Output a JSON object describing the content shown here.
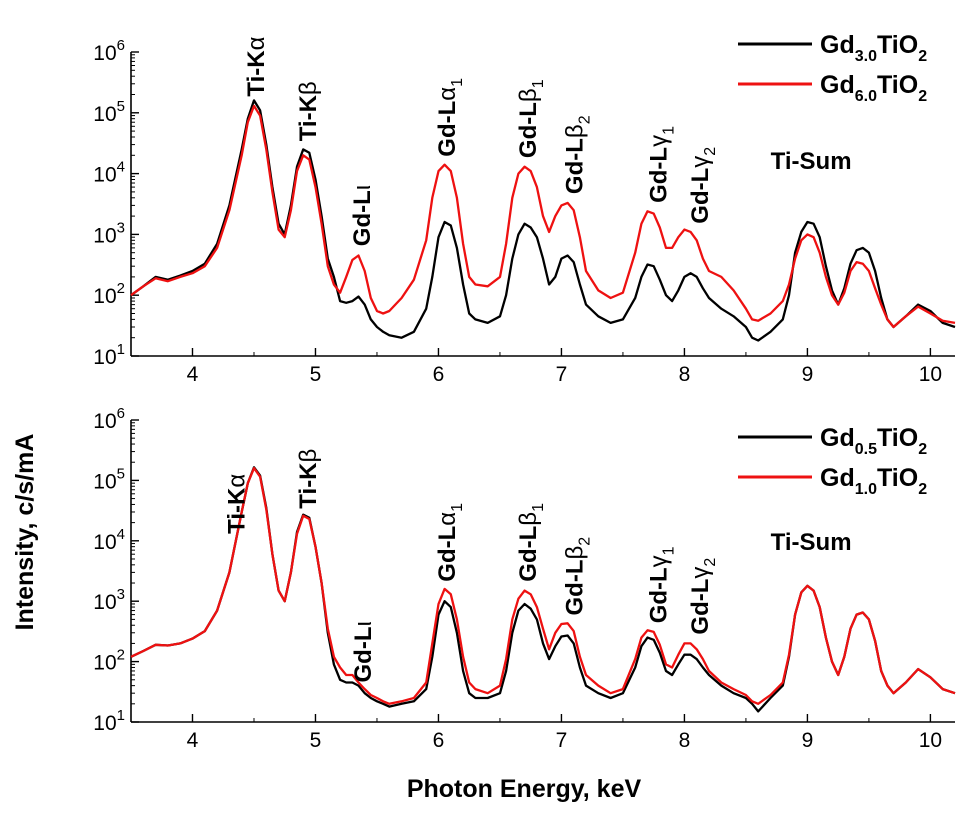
{
  "figure": {
    "xlabel": "Photon Energy, keV",
    "ylabel": "Intensity, c/s/mA"
  },
  "colors": {
    "series_a": "#000000",
    "series_b": "#ee1111"
  },
  "chart_data": [
    {
      "type": "line",
      "xlim": [
        3.5,
        10.2
      ],
      "ylim": [
        10,
        1000000
      ],
      "yscale": "log",
      "x_ticks": [
        4,
        5,
        6,
        7,
        8,
        9,
        10
      ],
      "y_tick_labels": [
        {
          "base": "10",
          "exp": "1"
        },
        {
          "base": "10",
          "exp": "2"
        },
        {
          "base": "10",
          "exp": "3"
        },
        {
          "base": "10",
          "exp": "4"
        },
        {
          "base": "10",
          "exp": "5"
        },
        {
          "base": "10",
          "exp": "6"
        }
      ],
      "legend_position": "top-right",
      "series": [
        {
          "name": "Gd3.0TiO2",
          "legend": {
            "pre": "Gd",
            "sub": "3.0",
            "mid": "TiO",
            "sub2": "2"
          },
          "color": "#000000",
          "x": [
            3.5,
            3.6,
            3.7,
            3.8,
            3.9,
            4.0,
            4.1,
            4.2,
            4.3,
            4.4,
            4.45,
            4.5,
            4.55,
            4.6,
            4.65,
            4.7,
            4.75,
            4.8,
            4.85,
            4.9,
            4.95,
            5.0,
            5.05,
            5.1,
            5.15,
            5.2,
            5.25,
            5.3,
            5.35,
            5.4,
            5.45,
            5.5,
            5.55,
            5.6,
            5.7,
            5.8,
            5.9,
            5.95,
            6.0,
            6.05,
            6.1,
            6.15,
            6.2,
            6.25,
            6.3,
            6.4,
            6.5,
            6.55,
            6.6,
            6.65,
            6.7,
            6.75,
            6.8,
            6.85,
            6.9,
            6.95,
            7.0,
            7.05,
            7.1,
            7.15,
            7.2,
            7.3,
            7.4,
            7.5,
            7.6,
            7.65,
            7.7,
            7.75,
            7.8,
            7.85,
            7.9,
            7.95,
            8.0,
            8.05,
            8.1,
            8.15,
            8.2,
            8.3,
            8.4,
            8.5,
            8.55,
            8.6,
            8.7,
            8.8,
            8.85,
            8.9,
            8.95,
            9.0,
            9.05,
            9.1,
            9.15,
            9.2,
            9.25,
            9.3,
            9.35,
            9.4,
            9.45,
            9.5,
            9.55,
            9.6,
            9.65,
            9.7,
            9.8,
            9.9,
            10.0,
            10.1,
            10.2
          ],
          "y": [
            100,
            140,
            200,
            180,
            210,
            250,
            330,
            700,
            3000,
            25000,
            80000,
            160000,
            110000,
            30000,
            6000,
            1500,
            1000,
            3000,
            13000,
            25000,
            22000,
            8000,
            2000,
            400,
            200,
            80,
            75,
            80,
            95,
            70,
            40,
            30,
            25,
            22,
            20,
            25,
            60,
            200,
            900,
            1600,
            1400,
            600,
            150,
            50,
            40,
            35,
            45,
            100,
            400,
            1000,
            1500,
            1300,
            900,
            400,
            150,
            200,
            400,
            450,
            350,
            150,
            70,
            45,
            35,
            40,
            90,
            200,
            320,
            300,
            180,
            100,
            80,
            120,
            200,
            230,
            200,
            130,
            90,
            60,
            45,
            30,
            20,
            18,
            25,
            40,
            100,
            500,
            1100,
            1600,
            1500,
            900,
            300,
            120,
            70,
            130,
            330,
            550,
            600,
            500,
            250,
            90,
            40,
            30,
            45,
            70,
            55,
            35,
            30
          ]
        },
        {
          "name": "Gd6.0TiO2",
          "legend": {
            "pre": "Gd",
            "sub": "6.0",
            "mid": "TiO",
            "sub2": "2"
          },
          "color": "#ee1111",
          "x": [
            3.5,
            3.6,
            3.7,
            3.8,
            3.9,
            4.0,
            4.1,
            4.2,
            4.3,
            4.4,
            4.45,
            4.5,
            4.55,
            4.6,
            4.65,
            4.7,
            4.75,
            4.8,
            4.85,
            4.9,
            4.95,
            5.0,
            5.05,
            5.1,
            5.15,
            5.2,
            5.25,
            5.3,
            5.35,
            5.4,
            5.45,
            5.5,
            5.55,
            5.6,
            5.7,
            5.8,
            5.9,
            5.95,
            6.0,
            6.05,
            6.1,
            6.15,
            6.2,
            6.25,
            6.3,
            6.4,
            6.5,
            6.55,
            6.6,
            6.65,
            6.7,
            6.75,
            6.8,
            6.85,
            6.9,
            6.95,
            7.0,
            7.05,
            7.1,
            7.15,
            7.2,
            7.3,
            7.4,
            7.5,
            7.6,
            7.65,
            7.7,
            7.75,
            7.8,
            7.85,
            7.9,
            7.95,
            8.0,
            8.05,
            8.1,
            8.15,
            8.2,
            8.3,
            8.4,
            8.5,
            8.55,
            8.6,
            8.7,
            8.8,
            8.85,
            8.9,
            8.95,
            9.0,
            9.05,
            9.1,
            9.15,
            9.2,
            9.25,
            9.3,
            9.35,
            9.4,
            9.45,
            9.5,
            9.55,
            9.6,
            9.65,
            9.7,
            9.8,
            9.9,
            10.0,
            10.1,
            10.2
          ],
          "y": [
            100,
            140,
            190,
            170,
            200,
            230,
            300,
            600,
            2500,
            20000,
            70000,
            130000,
            90000,
            25000,
            5000,
            1200,
            900,
            2500,
            11000,
            20000,
            17000,
            6000,
            1500,
            300,
            150,
            110,
            200,
            380,
            450,
            250,
            90,
            55,
            50,
            55,
            90,
            180,
            800,
            4000,
            11000,
            14000,
            11000,
            4000,
            700,
            200,
            150,
            140,
            200,
            700,
            4000,
            10000,
            13000,
            11000,
            6000,
            2000,
            1100,
            2000,
            3000,
            3300,
            2500,
            900,
            250,
            120,
            90,
            110,
            500,
            1500,
            2400,
            2200,
            1300,
            600,
            600,
            900,
            1200,
            1100,
            800,
            400,
            250,
            200,
            120,
            60,
            40,
            38,
            50,
            80,
            150,
            400,
            800,
            1000,
            900,
            500,
            200,
            100,
            70,
            110,
            250,
            350,
            330,
            250,
            130,
            70,
            40,
            30,
            45,
            65,
            50,
            38,
            35
          ]
        }
      ],
      "annotations": [
        {
          "x": 4.51,
          "y": 185000,
          "base": "Ti-K",
          "greek": "α"
        },
        {
          "x": 4.93,
          "y": 34000,
          "base": "Ti-K",
          "greek": "β"
        },
        {
          "x": 5.37,
          "y": 640,
          "base": "Gd-L",
          "greek": "ι"
        },
        {
          "x": 6.06,
          "y": 19000,
          "base": "Gd-L",
          "greek": "α",
          "sub": "1"
        },
        {
          "x": 6.72,
          "y": 18000,
          "base": "Gd-L",
          "greek": "β",
          "sub": "1"
        },
        {
          "x": 7.1,
          "y": 4600,
          "base": "Gd-L",
          "greek": "β",
          "sub": "2"
        },
        {
          "x": 7.78,
          "y": 3300,
          "base": "Gd-L",
          "greek": "γ",
          "sub": "1"
        },
        {
          "x": 8.12,
          "y": 1500,
          "base": "Gd-L",
          "greek": "γ",
          "sub": "2"
        },
        {
          "x": 9.03,
          "y": 12000,
          "text": "Ti-Sum"
        }
      ]
    },
    {
      "type": "line",
      "xlim": [
        3.5,
        10.2
      ],
      "ylim": [
        10,
        1000000
      ],
      "yscale": "log",
      "x_ticks": [
        4,
        5,
        6,
        7,
        8,
        9,
        10
      ],
      "y_tick_labels": [
        {
          "base": "10",
          "exp": "1"
        },
        {
          "base": "10",
          "exp": "2"
        },
        {
          "base": "10",
          "exp": "3"
        },
        {
          "base": "10",
          "exp": "4"
        },
        {
          "base": "10",
          "exp": "5"
        },
        {
          "base": "10",
          "exp": "6"
        }
      ],
      "legend_position": "top-right",
      "series": [
        {
          "name": "Gd0.5TiO2",
          "legend": {
            "pre": "Gd",
            "sub": "0.5",
            "mid": "TiO",
            "sub2": "2"
          },
          "color": "#000000",
          "x": [
            3.5,
            3.6,
            3.7,
            3.8,
            3.9,
            4.0,
            4.1,
            4.2,
            4.3,
            4.4,
            4.45,
            4.5,
            4.55,
            4.6,
            4.65,
            4.7,
            4.75,
            4.8,
            4.85,
            4.9,
            4.95,
            5.0,
            5.05,
            5.1,
            5.15,
            5.2,
            5.25,
            5.3,
            5.35,
            5.4,
            5.45,
            5.5,
            5.55,
            5.6,
            5.7,
            5.8,
            5.9,
            5.95,
            6.0,
            6.05,
            6.1,
            6.15,
            6.2,
            6.25,
            6.3,
            6.4,
            6.5,
            6.55,
            6.6,
            6.65,
            6.7,
            6.75,
            6.8,
            6.85,
            6.9,
            6.95,
            7.0,
            7.05,
            7.1,
            7.15,
            7.2,
            7.3,
            7.4,
            7.5,
            7.6,
            7.65,
            7.7,
            7.75,
            7.8,
            7.85,
            7.9,
            7.95,
            8.0,
            8.05,
            8.1,
            8.15,
            8.2,
            8.3,
            8.4,
            8.5,
            8.55,
            8.6,
            8.7,
            8.8,
            8.85,
            8.9,
            8.95,
            9.0,
            9.05,
            9.1,
            9.15,
            9.2,
            9.25,
            9.3,
            9.35,
            9.4,
            9.45,
            9.5,
            9.55,
            9.6,
            9.65,
            9.7,
            9.8,
            9.9,
            10.0,
            10.1,
            10.2
          ],
          "y": [
            120,
            150,
            190,
            185,
            200,
            240,
            320,
            700,
            3000,
            30000,
            90000,
            165000,
            120000,
            35000,
            6000,
            1500,
            1000,
            3000,
            14000,
            27000,
            24000,
            8000,
            2000,
            300,
            90,
            50,
            45,
            45,
            40,
            30,
            25,
            22,
            20,
            18,
            20,
            22,
            35,
            120,
            600,
            1000,
            800,
            300,
            70,
            30,
            25,
            25,
            30,
            70,
            300,
            700,
            900,
            750,
            500,
            200,
            110,
            180,
            260,
            270,
            200,
            80,
            40,
            30,
            25,
            30,
            80,
            180,
            250,
            230,
            140,
            70,
            60,
            90,
            130,
            130,
            110,
            80,
            60,
            40,
            30,
            25,
            20,
            15,
            25,
            40,
            120,
            600,
            1400,
            1800,
            1500,
            800,
            250,
            100,
            60,
            120,
            350,
            600,
            650,
            500,
            220,
            70,
            40,
            30,
            45,
            75,
            55,
            35,
            30
          ]
        },
        {
          "name": "Gd1.0TiO2",
          "legend": {
            "pre": "Gd",
            "sub": "1.0",
            "mid": "TiO",
            "sub2": "2"
          },
          "color": "#ee1111",
          "x": [
            3.5,
            3.6,
            3.7,
            3.8,
            3.9,
            4.0,
            4.1,
            4.2,
            4.3,
            4.4,
            4.45,
            4.5,
            4.55,
            4.6,
            4.65,
            4.7,
            4.75,
            4.8,
            4.85,
            4.9,
            4.95,
            5.0,
            5.05,
            5.1,
            5.15,
            5.2,
            5.25,
            5.3,
            5.35,
            5.4,
            5.45,
            5.5,
            5.55,
            5.6,
            5.7,
            5.8,
            5.9,
            5.95,
            6.0,
            6.05,
            6.1,
            6.15,
            6.2,
            6.25,
            6.3,
            6.4,
            6.5,
            6.55,
            6.6,
            6.65,
            6.7,
            6.75,
            6.8,
            6.85,
            6.9,
            6.95,
            7.0,
            7.05,
            7.1,
            7.15,
            7.2,
            7.3,
            7.4,
            7.5,
            7.6,
            7.65,
            7.7,
            7.75,
            7.8,
            7.85,
            7.9,
            7.95,
            8.0,
            8.05,
            8.1,
            8.15,
            8.2,
            8.3,
            8.4,
            8.5,
            8.55,
            8.6,
            8.7,
            8.8,
            8.85,
            8.9,
            8.95,
            9.0,
            9.05,
            9.1,
            9.15,
            9.2,
            9.25,
            9.3,
            9.35,
            9.4,
            9.45,
            9.5,
            9.55,
            9.6,
            9.65,
            9.7,
            9.8,
            9.9,
            10.0,
            10.1,
            10.2
          ],
          "y": [
            120,
            150,
            190,
            185,
            200,
            240,
            320,
            700,
            3000,
            30000,
            90000,
            160000,
            115000,
            33000,
            6000,
            1500,
            1000,
            3000,
            13000,
            26000,
            23000,
            8000,
            2000,
            350,
            120,
            80,
            60,
            60,
            45,
            35,
            28,
            25,
            22,
            20,
            22,
            25,
            45,
            200,
            900,
            1600,
            1300,
            500,
            120,
            45,
            35,
            30,
            40,
            110,
            500,
            1100,
            1500,
            1300,
            800,
            350,
            160,
            300,
            420,
            430,
            320,
            120,
            60,
            40,
            30,
            35,
            110,
            250,
            330,
            310,
            190,
            90,
            80,
            130,
            200,
            200,
            160,
            110,
            70,
            45,
            35,
            28,
            22,
            20,
            28,
            45,
            130,
            600,
            1400,
            1800,
            1500,
            800,
            250,
            100,
            60,
            120,
            350,
            600,
            650,
            500,
            220,
            70,
            40,
            30,
            45,
            75,
            55,
            35,
            30
          ]
        }
      ],
      "annotations": [
        {
          "x": 4.35,
          "y": 13000,
          "base": "Ti-K",
          "greek": "α"
        },
        {
          "x": 4.93,
          "y": 34000,
          "base": "Ti-K",
          "greek": "β"
        },
        {
          "x": 5.38,
          "y": 45,
          "base": "Gd-L",
          "greek": "ι"
        },
        {
          "x": 6.06,
          "y": 2100,
          "base": "Gd-L",
          "greek": "α",
          "sub": "1"
        },
        {
          "x": 6.72,
          "y": 2100,
          "base": "Gd-L",
          "greek": "β",
          "sub": "1"
        },
        {
          "x": 7.1,
          "y": 580,
          "base": "Gd-L",
          "greek": "β",
          "sub": "2"
        },
        {
          "x": 7.78,
          "y": 430,
          "base": "Gd-L",
          "greek": "γ",
          "sub": "1"
        },
        {
          "x": 8.12,
          "y": 280,
          "base": "Gd-L",
          "greek": "γ",
          "sub": "2"
        },
        {
          "x": 9.03,
          "y": 7000,
          "text": "Ti-Sum"
        }
      ]
    }
  ]
}
